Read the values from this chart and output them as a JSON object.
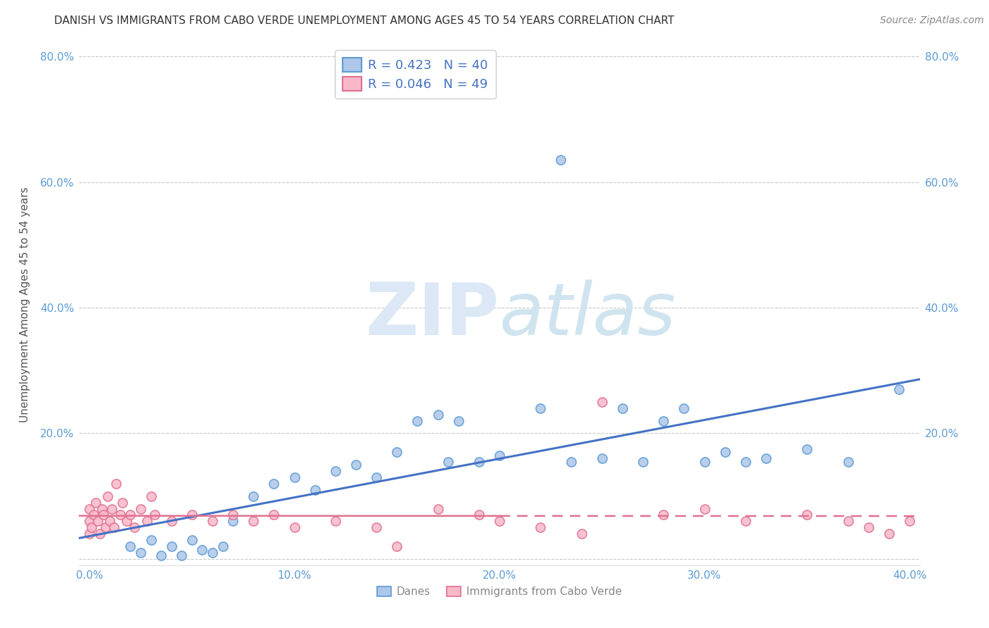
{
  "title": "DANISH VS IMMIGRANTS FROM CABO VERDE UNEMPLOYMENT AMONG AGES 45 TO 54 YEARS CORRELATION CHART",
  "source": "Source: ZipAtlas.com",
  "ylabel": "Unemployment Among Ages 45 to 54 years",
  "xlabel_danes": "Danes",
  "xlabel_immigrants": "Immigrants from Cabo Verde",
  "xlim": [
    -0.005,
    0.405
  ],
  "ylim": [
    -0.01,
    0.82
  ],
  "xticks": [
    0.0,
    0.1,
    0.2,
    0.3,
    0.4
  ],
  "yticks": [
    0.0,
    0.2,
    0.4,
    0.6,
    0.8
  ],
  "danes_R": 0.423,
  "danes_N": 40,
  "immigrants_R": 0.046,
  "immigrants_N": 49,
  "danes_color": "#aec6e8",
  "danes_edge_color": "#5b9bd5",
  "immigrants_color": "#f9b8c8",
  "immigrants_edge_color": "#e07090",
  "danes_line_color": "#4472c4",
  "immigrants_line_color": "#e07090",
  "background_color": "#ffffff",
  "grid_color": "#c8c8c8",
  "danes_scatter_x": [
    0.02,
    0.025,
    0.03,
    0.035,
    0.04,
    0.045,
    0.05,
    0.055,
    0.06,
    0.065,
    0.07,
    0.08,
    0.09,
    0.1,
    0.11,
    0.12,
    0.13,
    0.14,
    0.15,
    0.16,
    0.17,
    0.175,
    0.18,
    0.19,
    0.2,
    0.22,
    0.23,
    0.235,
    0.25,
    0.26,
    0.27,
    0.28,
    0.29,
    0.3,
    0.31,
    0.32,
    0.33,
    0.35,
    0.37,
    0.395
  ],
  "danes_scatter_y": [
    0.02,
    0.01,
    0.03,
    0.005,
    0.02,
    0.005,
    0.03,
    0.015,
    0.01,
    0.02,
    0.06,
    0.1,
    0.12,
    0.13,
    0.11,
    0.14,
    0.15,
    0.13,
    0.17,
    0.22,
    0.23,
    0.155,
    0.22,
    0.155,
    0.165,
    0.24,
    0.635,
    0.155,
    0.16,
    0.24,
    0.155,
    0.22,
    0.24,
    0.155,
    0.17,
    0.155,
    0.16,
    0.175,
    0.155,
    0.27
  ],
  "immigrants_scatter_x": [
    0.0,
    0.0,
    0.0,
    0.001,
    0.002,
    0.003,
    0.004,
    0.005,
    0.006,
    0.007,
    0.008,
    0.009,
    0.01,
    0.011,
    0.012,
    0.013,
    0.015,
    0.016,
    0.018,
    0.02,
    0.022,
    0.025,
    0.028,
    0.03,
    0.032,
    0.04,
    0.05,
    0.06,
    0.07,
    0.08,
    0.09,
    0.1,
    0.12,
    0.14,
    0.15,
    0.17,
    0.19,
    0.2,
    0.22,
    0.24,
    0.25,
    0.28,
    0.3,
    0.32,
    0.35,
    0.37,
    0.38,
    0.39,
    0.4
  ],
  "immigrants_scatter_y": [
    0.04,
    0.06,
    0.08,
    0.05,
    0.07,
    0.09,
    0.06,
    0.04,
    0.08,
    0.07,
    0.05,
    0.1,
    0.06,
    0.08,
    0.05,
    0.12,
    0.07,
    0.09,
    0.06,
    0.07,
    0.05,
    0.08,
    0.06,
    0.1,
    0.07,
    0.06,
    0.07,
    0.06,
    0.07,
    0.06,
    0.07,
    0.05,
    0.06,
    0.05,
    0.02,
    0.08,
    0.07,
    0.06,
    0.05,
    0.04,
    0.25,
    0.07,
    0.08,
    0.06,
    0.07,
    0.06,
    0.05,
    0.04,
    0.06
  ],
  "title_fontsize": 11,
  "label_fontsize": 11,
  "tick_fontsize": 11,
  "legend_fontsize": 13,
  "source_fontsize": 10
}
